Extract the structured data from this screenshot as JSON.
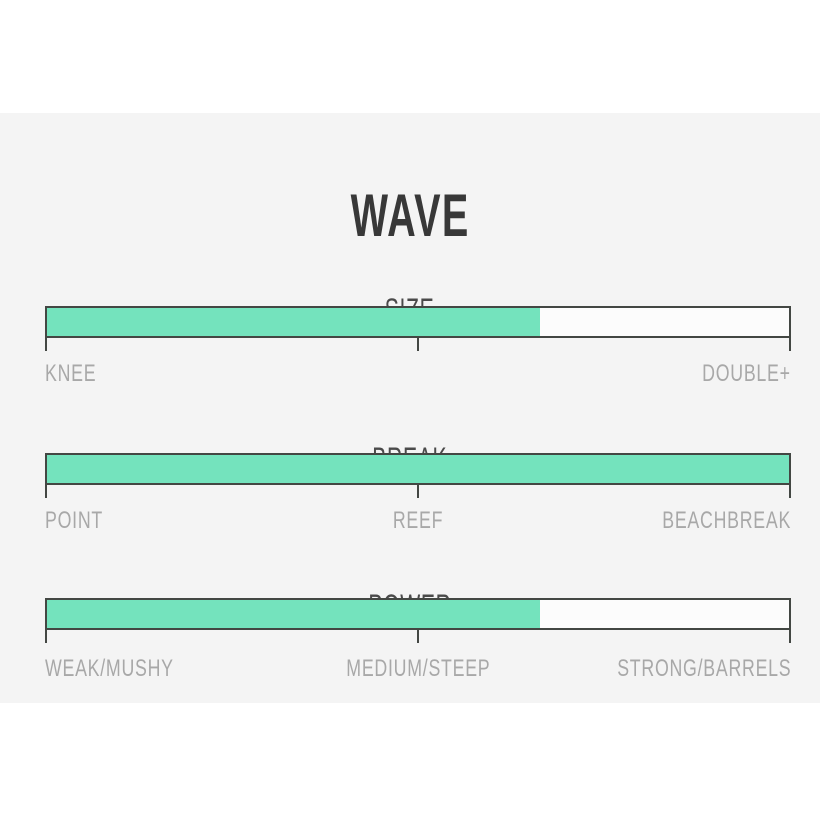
{
  "page": {
    "title": "WAVE"
  },
  "colors": {
    "accent_fill": "#74e3bd",
    "bar_border": "#434743",
    "panel_background": "#f4f4f4",
    "page_background": "#ffffff",
    "heading_text": "#4a4a4a",
    "label_text": "#a8a8a8"
  },
  "sections": [
    {
      "id": "size",
      "heading": "SIZE",
      "fill_pct": "66.4%",
      "labels": {
        "left": "KNEE",
        "right": "DOUBLE+"
      }
    },
    {
      "id": "break",
      "heading": "BREAK",
      "fill_pct": "100%",
      "labels": {
        "left": "POINT",
        "center": "REEF",
        "right": "BEACHBREAK"
      }
    },
    {
      "id": "power",
      "heading": "POWER",
      "fill_pct": "66.4%",
      "labels": {
        "left": "WEAK/MUSHY",
        "center": "MEDIUM/STEEP",
        "right": "STRONG/BARRELS"
      }
    }
  ],
  "chart_data": {
    "type": "bar",
    "title": "WAVE",
    "orientation": "horizontal",
    "series": [
      {
        "name": "SIZE",
        "value_pct": 66.4,
        "scale_min_label": "KNEE",
        "scale_max_label": "DOUBLE+",
        "scale_labels": [
          "KNEE",
          "DOUBLE+"
        ]
      },
      {
        "name": "BREAK",
        "value_pct": 100.0,
        "scale_min_label": "POINT",
        "scale_max_label": "BEACHBREAK",
        "scale_labels": [
          "POINT",
          "REEF",
          "BEACHBREAK"
        ]
      },
      {
        "name": "POWER",
        "value_pct": 66.4,
        "scale_min_label": "WEAK/MUSHY",
        "scale_max_label": "STRONG/BARRELS",
        "scale_labels": [
          "WEAK/MUSHY",
          "MEDIUM/STEEP",
          "STRONG/BARRELS"
        ]
      }
    ],
    "xlim": [
      0,
      100
    ],
    "grid": false,
    "legend": false
  }
}
